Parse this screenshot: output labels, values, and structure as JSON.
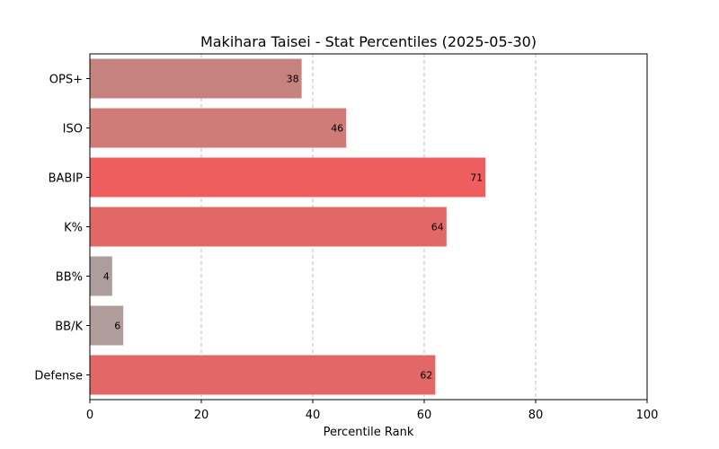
{
  "chart_data": {
    "type": "bar",
    "orientation": "horizontal",
    "title": "Makihara Taisei - Stat Percentiles (2025-05-30)",
    "xlabel": "Percentile Rank",
    "ylabel": "",
    "xlim": [
      0,
      100
    ],
    "xticks": [
      0,
      20,
      40,
      60,
      80,
      100
    ],
    "grid": "x-dashed",
    "categories": [
      "OPS+",
      "ISO",
      "BABIP",
      "K%",
      "BB%",
      "BB/K",
      "Defense"
    ],
    "values": [
      38,
      46,
      71,
      64,
      4,
      6,
      62
    ],
    "colors": [
      "#c6827f",
      "#d17b77",
      "#ef5e5f",
      "#e26867",
      "#ad9e9d",
      "#af9d9c",
      "#e26867"
    ]
  }
}
